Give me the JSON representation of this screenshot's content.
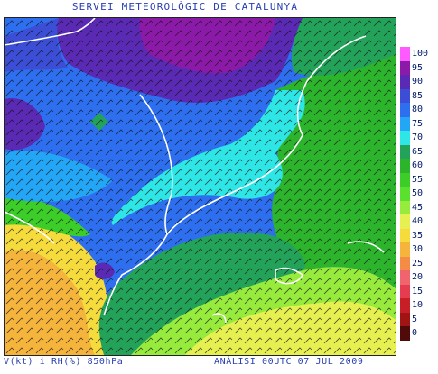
{
  "header": {
    "title": "SERVEI METEOROLÒGIC DE CATALUNYA"
  },
  "footer": {
    "left": "V(kt) i RH(%) 850hPa",
    "right": "ANÀLISI 00UTC 07 JUL 2009"
  },
  "legend": {
    "items": [
      {
        "label": "100",
        "color": "#ff5aff"
      },
      {
        "label": "95",
        "color": "#8c1aa8"
      },
      {
        "label": "90",
        "color": "#5a2ab4"
      },
      {
        "label": "85",
        "color": "#3c4ed6"
      },
      {
        "label": "80",
        "color": "#2e6ff0"
      },
      {
        "label": "75",
        "color": "#23a6f5"
      },
      {
        "label": "70",
        "color": "#2ee6e6"
      },
      {
        "label": "65",
        "color": "#23a35a"
      },
      {
        "label": "60",
        "color": "#2db42d"
      },
      {
        "label": "55",
        "color": "#3ccd28"
      },
      {
        "label": "50",
        "color": "#5ae12d"
      },
      {
        "label": "45",
        "color": "#96eb3c"
      },
      {
        "label": "40",
        "color": "#e6f050"
      },
      {
        "label": "35",
        "color": "#f5dc3c"
      },
      {
        "label": "30",
        "color": "#f5b43c"
      },
      {
        "label": "25",
        "color": "#f58c46"
      },
      {
        "label": "20",
        "color": "#f0646e"
      },
      {
        "label": "15",
        "color": "#e63c50"
      },
      {
        "label": "10",
        "color": "#c81e28"
      },
      {
        "label": "5",
        "color": "#a01414"
      },
      {
        "label": "0",
        "color": "#500a0a"
      }
    ]
  }
}
